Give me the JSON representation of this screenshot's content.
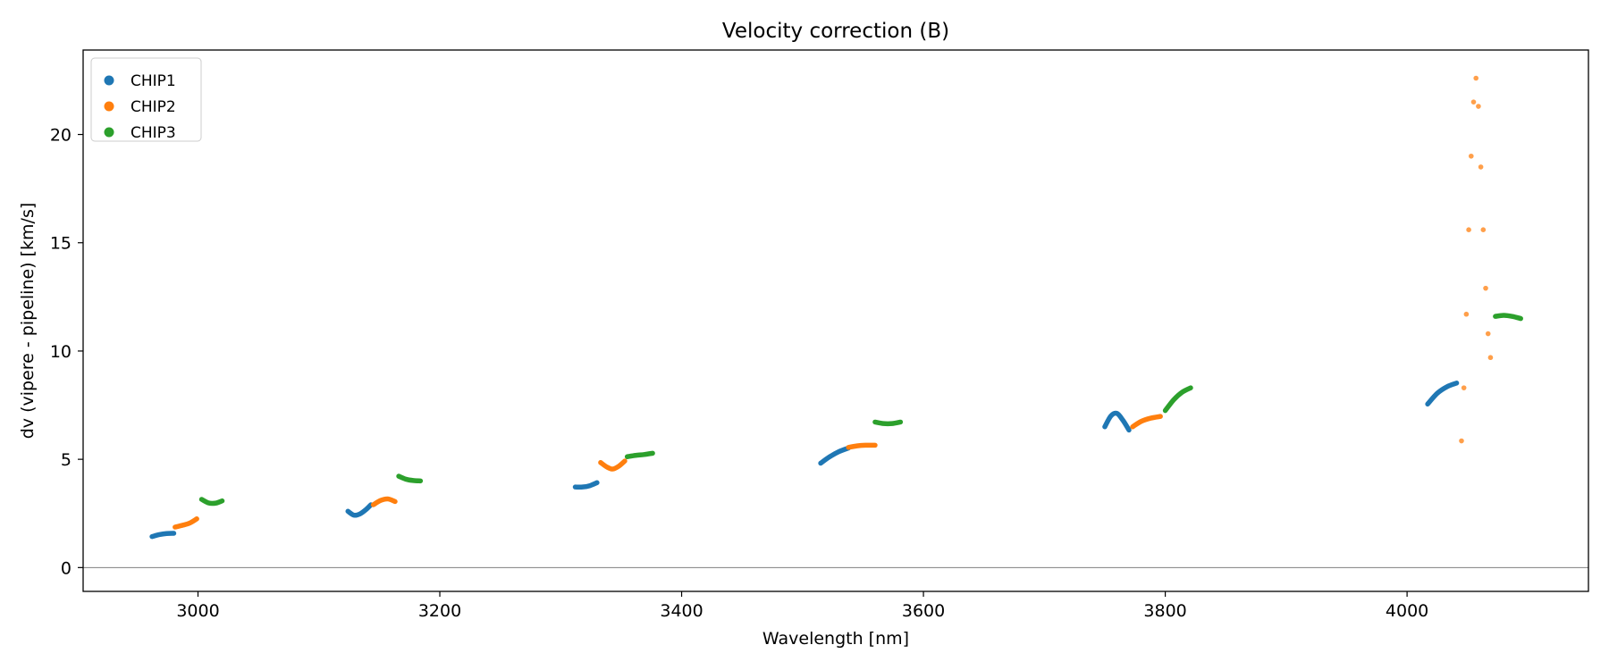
{
  "chart_data": {
    "type": "scatter",
    "title": "Velocity correction (B)",
    "xlabel": "Wavelength [nm]",
    "ylabel": "dv (vipere - pipeline) [km/s]",
    "xlim": [
      2905,
      4150
    ],
    "ylim": [
      -1.1,
      23.9
    ],
    "xticks": [
      3000,
      3200,
      3400,
      3600,
      3800,
      4000
    ],
    "yticks": [
      0,
      5,
      10,
      15,
      20
    ],
    "grid": false,
    "hline": 0,
    "legend_position": "top-left",
    "series": [
      {
        "name": "CHIP1",
        "color": "#1f77b4",
        "segments": [
          {
            "x": [
              2962,
              2968,
              2974,
              2980
            ],
            "y": [
              1.43,
              1.52,
              1.57,
              1.58
            ]
          },
          {
            "x": [
              3124,
              3129,
              3134,
              3139,
              3143
            ],
            "y": [
              2.6,
              2.42,
              2.48,
              2.68,
              2.9
            ]
          },
          {
            "x": [
              3312,
              3318,
              3324,
              3330
            ],
            "y": [
              3.72,
              3.72,
              3.78,
              3.92
            ]
          },
          {
            "x": [
              3515,
              3522,
              3530,
              3538
            ],
            "y": [
              4.82,
              5.1,
              5.35,
              5.52
            ]
          },
          {
            "x": [
              3750,
              3755,
              3760,
              3765,
              3770
            ],
            "y": [
              6.5,
              7.0,
              7.12,
              6.8,
              6.35
            ]
          },
          {
            "x": [
              4017,
              4025,
              4033,
              4041
            ],
            "y": [
              7.55,
              8.05,
              8.35,
              8.52
            ]
          }
        ]
      },
      {
        "name": "CHIP2",
        "color": "#ff7f0e",
        "segments": [
          {
            "x": [
              2981,
              2987,
              2993,
              2999
            ],
            "y": [
              1.87,
              1.95,
              2.05,
              2.25
            ]
          },
          {
            "x": [
              3145,
              3151,
              3157,
              3163
            ],
            "y": [
              2.9,
              3.1,
              3.17,
              3.05
            ]
          },
          {
            "x": [
              3333,
              3338,
              3343,
              3348,
              3353
            ],
            "y": [
              4.85,
              4.65,
              4.55,
              4.68,
              4.92
            ]
          },
          {
            "x": [
              3538,
              3545,
              3552,
              3560
            ],
            "y": [
              5.55,
              5.62,
              5.65,
              5.65
            ]
          },
          {
            "x": [
              3773,
              3780,
              3788,
              3796
            ],
            "y": [
              6.5,
              6.75,
              6.9,
              6.98
            ]
          },
          {
            "x": [
              4045,
              4047,
              4049,
              4051,
              4053,
              4055,
              4057,
              4059,
              4061,
              4063,
              4065,
              4067,
              4069
            ],
            "y": [
              5.85,
              8.3,
              11.7,
              15.6,
              19.0,
              21.5,
              22.6,
              21.3,
              18.5,
              15.6,
              12.9,
              10.8,
              9.7
            ]
          }
        ]
      },
      {
        "name": "CHIP3",
        "color": "#2ca02c",
        "segments": [
          {
            "x": [
              3003,
              3009,
              3015,
              3020
            ],
            "y": [
              3.15,
              2.98,
              2.98,
              3.08
            ]
          },
          {
            "x": [
              3166,
              3172,
              3178,
              3184
            ],
            "y": [
              4.22,
              4.08,
              4.02,
              4.0
            ]
          },
          {
            "x": [
              3355,
              3362,
              3369,
              3376
            ],
            "y": [
              5.12,
              5.18,
              5.22,
              5.28
            ]
          },
          {
            "x": [
              3560,
              3567,
              3574,
              3581
            ],
            "y": [
              6.72,
              6.65,
              6.65,
              6.72
            ]
          },
          {
            "x": [
              3800,
              3807,
              3814,
              3821
            ],
            "y": [
              7.25,
              7.75,
              8.1,
              8.3
            ]
          },
          {
            "x": [
              4073,
              4080,
              4087,
              4094
            ],
            "y": [
              11.6,
              11.65,
              11.6,
              11.5
            ]
          }
        ]
      }
    ]
  }
}
